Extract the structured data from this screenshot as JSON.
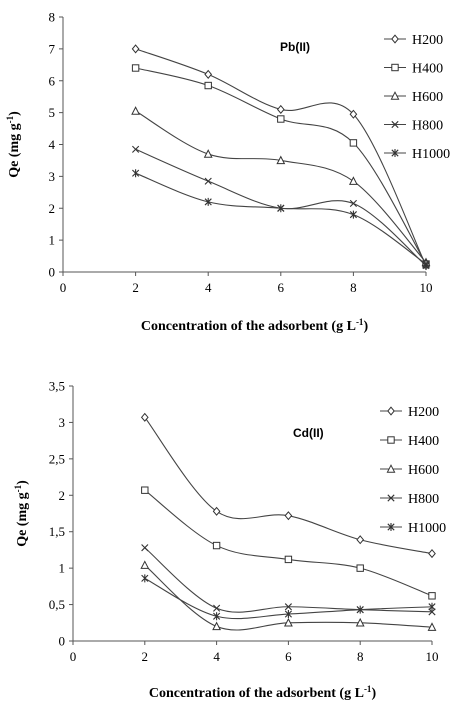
{
  "chart_data": [
    {
      "type": "line",
      "annotation": "Pb(II)",
      "xlabel": "Concentration of the adsorbent (g L-1)",
      "ylabel": "Qe (mg g-1)",
      "xlim": [
        0,
        10
      ],
      "ylim": [
        0,
        8
      ],
      "xticks": [
        "0",
        "2",
        "4",
        "6",
        "8",
        "10"
      ],
      "yticks": [
        "0",
        "1",
        "2",
        "3",
        "4",
        "5",
        "6",
        "7",
        "8"
      ],
      "x": [
        2,
        4,
        6,
        8,
        10
      ],
      "legend_position": "right",
      "grid": false,
      "series": [
        {
          "name": "H200",
          "marker": "diamond",
          "values": [
            7.0,
            6.2,
            5.1,
            4.95,
            0.2
          ]
        },
        {
          "name": "H400",
          "marker": "square",
          "values": [
            6.4,
            5.85,
            4.8,
            4.05,
            0.25
          ]
        },
        {
          "name": "H600",
          "marker": "triangle",
          "values": [
            5.05,
            3.7,
            3.5,
            2.85,
            0.3
          ]
        },
        {
          "name": "H800",
          "marker": "x",
          "values": [
            3.85,
            2.85,
            2.0,
            2.15,
            0.2
          ]
        },
        {
          "name": "H1000",
          "marker": "asterisk",
          "values": [
            3.1,
            2.2,
            2.0,
            1.8,
            0.25
          ]
        }
      ]
    },
    {
      "type": "line",
      "annotation": "Cd(II)",
      "xlabel": "Concentration of the adsorbent (g L-1)",
      "ylabel": "Qe (mg g-1)",
      "xlim": [
        0,
        10
      ],
      "ylim": [
        0,
        3.5
      ],
      "xticks": [
        "0",
        "2",
        "4",
        "6",
        "8",
        "10"
      ],
      "yticks": [
        "0",
        "0,5",
        "1",
        "1,5",
        "2",
        "2,5",
        "3",
        "3,5"
      ],
      "x": [
        2,
        4,
        6,
        8,
        10
      ],
      "legend_position": "right",
      "grid": false,
      "series": [
        {
          "name": "H200",
          "marker": "diamond",
          "values": [
            3.07,
            1.78,
            1.72,
            1.39,
            1.2
          ]
        },
        {
          "name": "H400",
          "marker": "square",
          "values": [
            2.07,
            1.31,
            1.12,
            1.0,
            0.62
          ]
        },
        {
          "name": "H600",
          "marker": "triangle",
          "values": [
            1.04,
            0.2,
            0.25,
            0.25,
            0.19
          ]
        },
        {
          "name": "H800",
          "marker": "x",
          "values": [
            1.28,
            0.45,
            0.47,
            0.43,
            0.4
          ]
        },
        {
          "name": "H1000",
          "marker": "asterisk",
          "values": [
            0.86,
            0.34,
            0.37,
            0.43,
            0.47
          ]
        }
      ]
    }
  ]
}
